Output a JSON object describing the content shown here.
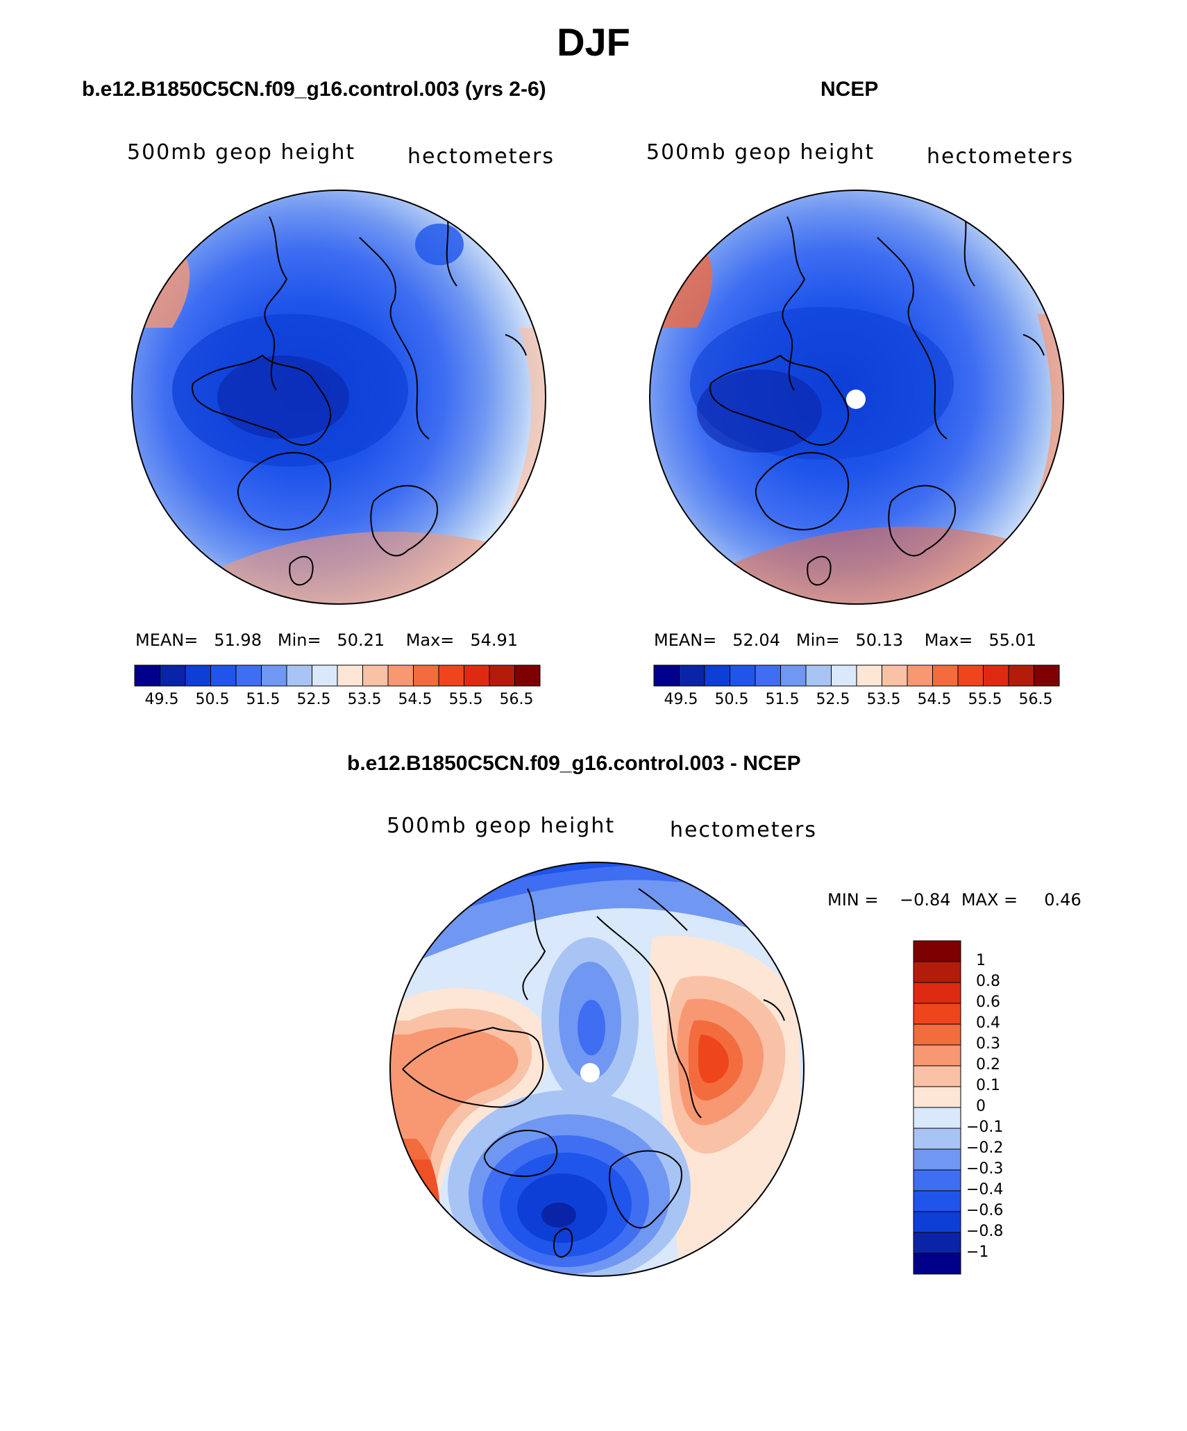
{
  "main_title": "DJF",
  "panels": [
    {
      "title": "b.e12.B1850C5CN.f09_g16.control.003 (yrs 2-6)",
      "left_label": "500mb geop height",
      "right_label": "hectometers",
      "stats": {
        "mean_label": "MEAN=",
        "mean": "51.98",
        "min_label": "Min=",
        "min": "50.21",
        "max_label": "Max=",
        "max": "54.91"
      }
    },
    {
      "title": "NCEP",
      "left_label": "500mb geop height",
      "right_label": "hectometers",
      "stats": {
        "mean_label": "MEAN=",
        "mean": "52.04",
        "min_label": "Min=",
        "min": "50.13",
        "max_label": "Max=",
        "max": "55.01"
      }
    },
    {
      "title": "b.e12.B1850C5CN.f09_g16.control.003 - NCEP",
      "left_label": "500mb geop height",
      "right_label": "hectometers",
      "stats": {
        "min_label": "MIN =",
        "min": "−0.84",
        "max_label": "MAX =",
        "max": "0.46"
      }
    }
  ],
  "colorbar_abs": {
    "colors": [
      "#00008b",
      "#0a24a8",
      "#0d3fd6",
      "#1f55ea",
      "#3f6ef2",
      "#7097f2",
      "#a8c4f4",
      "#d9e8fb",
      "#fde6d6",
      "#f9c1a5",
      "#f79873",
      "#f26c3e",
      "#ee451c",
      "#df2a12",
      "#b31c0a",
      "#7f0000"
    ],
    "labels": [
      "49.5",
      "50.5",
      "51.5",
      "52.5",
      "53.5",
      "54.5",
      "55.5",
      "56.5"
    ]
  },
  "colorbar_diff": {
    "colors": [
      "#00008b",
      "#0a24a8",
      "#0d3fd6",
      "#1f55ea",
      "#3f6ef2",
      "#7097f2",
      "#a8c4f4",
      "#d9e8fb",
      "#fde6d6",
      "#f9c1a5",
      "#f79873",
      "#f26c3e",
      "#ee451c",
      "#df2a12",
      "#b31c0a",
      "#7f0000"
    ],
    "labels": [
      "1",
      "0.8",
      "0.6",
      "0.4",
      "0.3",
      "0.2",
      "0.1",
      "0",
      "−0.1",
      "−0.2",
      "−0.3",
      "−0.4",
      "−0.6",
      "−0.8",
      "−1"
    ]
  }
}
